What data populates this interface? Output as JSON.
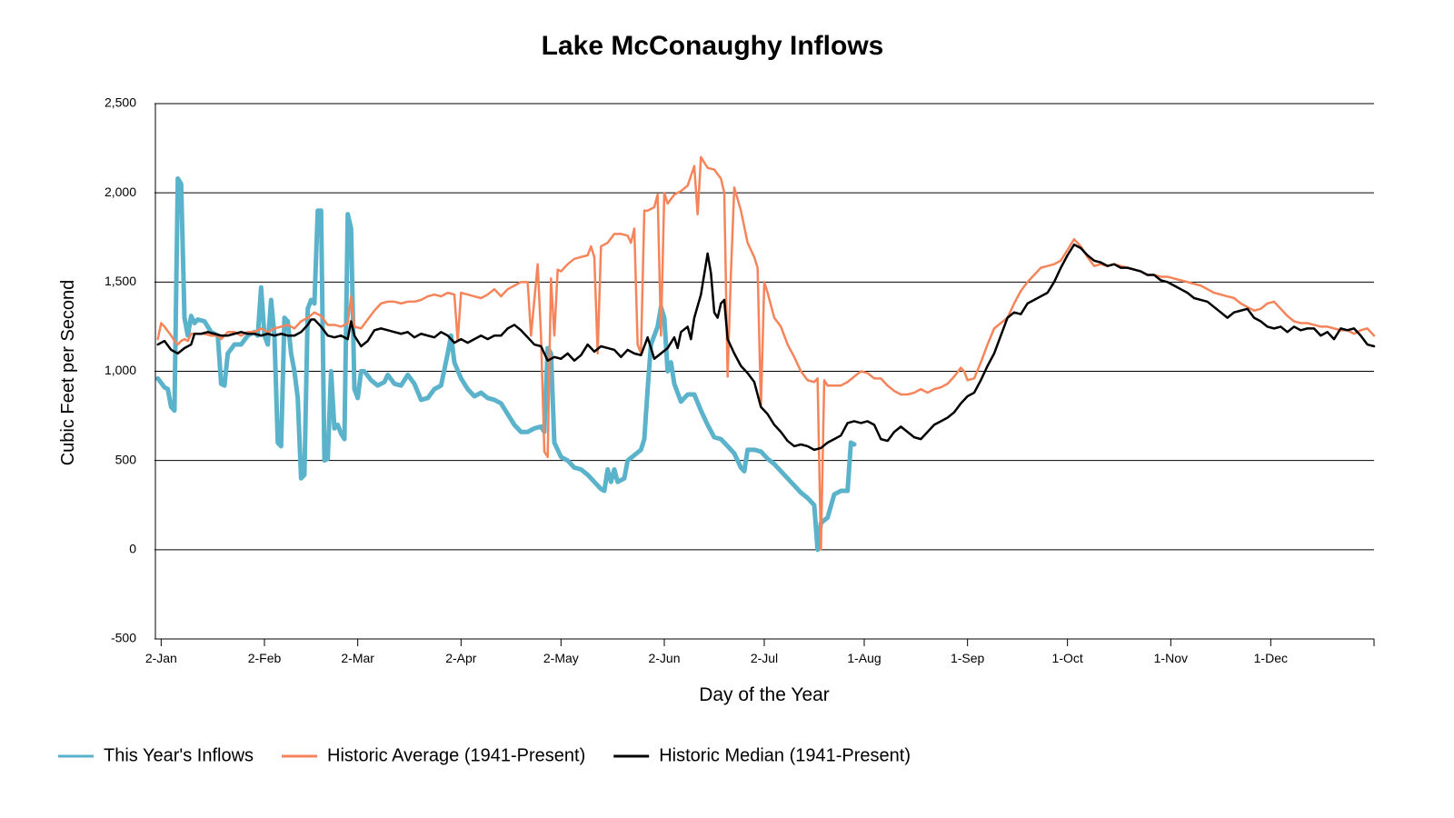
{
  "chart_data": {
    "type": "line",
    "title": "Lake McConaughy Inflows",
    "x_label": "Day of the Year",
    "y_label": "Cubic Feet per Second",
    "xlim": [
      0,
      366
    ],
    "ylim": [
      -500,
      2500
    ],
    "grid": true,
    "legend": "bottom",
    "xticks": [
      {
        "value": 2,
        "label": "2-Jan"
      },
      {
        "value": 33,
        "label": "2-Feb"
      },
      {
        "value": 61,
        "label": "2-Mar"
      },
      {
        "value": 92,
        "label": "2-Apr"
      },
      {
        "value": 122,
        "label": "2-May"
      },
      {
        "value": 153,
        "label": "2-Jun"
      },
      {
        "value": 183,
        "label": "2-Jul"
      },
      {
        "value": 213,
        "label": "1-Aug"
      },
      {
        "value": 244,
        "label": "1-Sep"
      },
      {
        "value": 274,
        "label": "1-Oct"
      },
      {
        "value": 305,
        "label": "1-Nov"
      },
      {
        "value": 335,
        "label": "1-Dec"
      }
    ],
    "yticks": [
      -500,
      0,
      500,
      {
        "value": 1000,
        "label": "1,000"
      },
      {
        "value": 1500,
        "label": "1,500"
      },
      {
        "value": 2000,
        "label": "2,000"
      },
      {
        "value": 2500,
        "label": "2,500"
      }
    ],
    "series": [
      {
        "name": "This Year's Inflows",
        "color": "#5bb3cb",
        "width": 5,
        "x": [
          1,
          3,
          4,
          5,
          6,
          7,
          8,
          9,
          10,
          11,
          12,
          13,
          15,
          17,
          19,
          20,
          21,
          22,
          24,
          26,
          28,
          30,
          31,
          32,
          33,
          34,
          35,
          36,
          37,
          38,
          39,
          40,
          41,
          42,
          43,
          44,
          45,
          46,
          47,
          48,
          49,
          50,
          51,
          52,
          53,
          54,
          55,
          56,
          57,
          58,
          59,
          60,
          61,
          62,
          63,
          65,
          67,
          69,
          70,
          72,
          74,
          76,
          78,
          80,
          82,
          84,
          86,
          88,
          89,
          90,
          92,
          94,
          96,
          98,
          100,
          102,
          104,
          106,
          108,
          110,
          112,
          114,
          116,
          117,
          118,
          119,
          120,
          122,
          124,
          126,
          128,
          130,
          132,
          134,
          135,
          136,
          137,
          138,
          139,
          141,
          142,
          144,
          146,
          147,
          148,
          149,
          151,
          152,
          153,
          154,
          155,
          156,
          158,
          160,
          162,
          164,
          166,
          168,
          170,
          172,
          174,
          176,
          177,
          178,
          180,
          182,
          184,
          186,
          188,
          190,
          192,
          194,
          196,
          198,
          199,
          200,
          202,
          204,
          206,
          208,
          209,
          210
        ],
        "values": [
          960,
          910,
          900,
          800,
          780,
          2080,
          2050,
          1300,
          1200,
          1310,
          1270,
          1290,
          1280,
          1220,
          1200,
          930,
          920,
          1100,
          1150,
          1150,
          1200,
          1220,
          1200,
          1470,
          1200,
          1150,
          1400,
          1200,
          600,
          580,
          1300,
          1280,
          1100,
          1000,
          850,
          400,
          420,
          1350,
          1400,
          1380,
          1900,
          1900,
          500,
          510,
          1000,
          680,
          700,
          650,
          620,
          1880,
          1800,
          900,
          850,
          1000,
          1000,
          950,
          920,
          940,
          980,
          930,
          920,
          980,
          930,
          840,
          850,
          900,
          920,
          1100,
          1200,
          1050,
          960,
          900,
          860,
          880,
          850,
          840,
          820,
          760,
          700,
          660,
          660,
          680,
          690,
          660,
          1130,
          1100,
          600,
          520,
          500,
          460,
          450,
          420,
          380,
          340,
          330,
          450,
          380,
          450,
          380,
          400,
          500,
          530,
          560,
          620,
          900,
          1150,
          1250,
          1360,
          1300,
          1000,
          1050,
          930,
          830,
          870,
          870,
          780,
          700,
          630,
          620,
          580,
          540,
          460,
          440,
          560,
          560,
          550,
          510,
          480,
          440,
          400,
          360,
          320,
          290,
          250,
          0,
          150,
          180,
          310,
          330,
          330,
          600,
          590
        ]
      },
      {
        "name": "Historic Average (1941-Present)",
        "color": "#f5845a",
        "width": 2.5,
        "x": [
          1,
          2,
          3,
          5,
          6,
          7,
          8,
          9,
          10,
          11,
          13,
          15,
          17,
          19,
          20,
          22,
          24,
          26,
          28,
          30,
          32,
          34,
          36,
          38,
          40,
          42,
          44,
          46,
          48,
          50,
          52,
          54,
          56,
          58,
          59,
          60,
          62,
          64,
          66,
          68,
          70,
          72,
          74,
          76,
          78,
          80,
          82,
          84,
          86,
          88,
          90,
          91,
          92,
          94,
          96,
          98,
          100,
          102,
          104,
          106,
          108,
          110,
          112,
          113,
          114,
          115,
          116,
          117,
          118,
          119,
          120,
          121,
          122,
          124,
          126,
          128,
          130,
          131,
          132,
          133,
          134,
          136,
          138,
          140,
          142,
          143,
          144,
          145,
          146,
          147,
          148,
          150,
          151,
          152,
          153,
          154,
          156,
          158,
          160,
          162,
          163,
          164,
          166,
          168,
          170,
          171,
          172,
          173,
          174,
          176,
          178,
          180,
          181,
          182,
          183,
          184,
          186,
          188,
          190,
          192,
          194,
          196,
          198,
          199,
          200,
          201,
          202,
          204,
          206,
          208,
          210,
          212,
          214,
          216,
          218,
          220,
          222,
          224,
          226,
          228,
          230,
          232,
          234,
          236,
          238,
          240,
          242,
          243,
          244,
          246,
          248,
          250,
          252,
          254,
          256,
          258,
          260,
          262,
          264,
          266,
          268,
          270,
          272,
          274,
          276,
          278,
          280,
          282,
          284,
          286,
          288,
          290,
          292,
          294,
          296,
          298,
          300,
          302,
          304,
          306,
          308,
          310,
          312,
          314,
          316,
          318,
          320,
          322,
          324,
          326,
          328,
          330,
          332,
          334,
          336,
          338,
          340,
          342,
          344,
          346,
          348,
          350,
          352,
          354,
          356,
          358,
          360,
          362,
          364,
          366
        ],
        "values": [
          1180,
          1270,
          1250,
          1200,
          1170,
          1150,
          1170,
          1180,
          1170,
          1210,
          1210,
          1210,
          1200,
          1200,
          1180,
          1220,
          1220,
          1200,
          1220,
          1220,
          1240,
          1220,
          1240,
          1250,
          1260,
          1240,
          1280,
          1300,
          1330,
          1310,
          1260,
          1260,
          1250,
          1270,
          1420,
          1250,
          1240,
          1290,
          1340,
          1380,
          1390,
          1390,
          1380,
          1390,
          1390,
          1400,
          1420,
          1430,
          1420,
          1440,
          1430,
          1170,
          1440,
          1430,
          1420,
          1410,
          1430,
          1460,
          1420,
          1460,
          1480,
          1500,
          1500,
          1200,
          1400,
          1600,
          1200,
          550,
          520,
          1520,
          1200,
          1570,
          1560,
          1600,
          1630,
          1640,
          1650,
          1700,
          1640,
          1100,
          1700,
          1720,
          1770,
          1770,
          1760,
          1720,
          1800,
          1150,
          1100,
          1900,
          1900,
          1920,
          1990,
          1200,
          2000,
          1940,
          1990,
          2010,
          2040,
          2150,
          1880,
          2200,
          2140,
          2130,
          2080,
          2000,
          970,
          1550,
          2030,
          1900,
          1720,
          1640,
          1580,
          800,
          1500,
          1440,
          1300,
          1250,
          1150,
          1080,
          1000,
          950,
          940,
          960,
          0,
          950,
          920,
          920,
          920,
          940,
          970,
          1000,
          990,
          960,
          960,
          920,
          890,
          870,
          870,
          880,
          900,
          880,
          900,
          910,
          930,
          970,
          1020,
          1000,
          950,
          960,
          1050,
          1150,
          1240,
          1270,
          1300,
          1380,
          1450,
          1500,
          1540,
          1580,
          1590,
          1600,
          1620,
          1680,
          1740,
          1700,
          1640,
          1590,
          1600,
          1590,
          1600,
          1590,
          1580,
          1570,
          1560,
          1540,
          1540,
          1530,
          1530,
          1520,
          1510,
          1500,
          1490,
          1480,
          1460,
          1440,
          1430,
          1420,
          1410,
          1380,
          1360,
          1340,
          1350,
          1380,
          1390,
          1350,
          1310,
          1280,
          1270,
          1270,
          1260,
          1250,
          1250,
          1240,
          1230,
          1230,
          1210,
          1230,
          1240,
          1200
        ]
      },
      {
        "name": "Historic Median (1941-Present)",
        "color": "#000000",
        "width": 2.5,
        "x": [
          1,
          3,
          5,
          7,
          9,
          11,
          12,
          14,
          16,
          18,
          20,
          22,
          24,
          26,
          28,
          30,
          32,
          34,
          36,
          38,
          40,
          42,
          44,
          46,
          47,
          48,
          50,
          52,
          54,
          56,
          58,
          59,
          60,
          62,
          64,
          66,
          68,
          70,
          72,
          74,
          76,
          78,
          80,
          82,
          84,
          86,
          88,
          90,
          92,
          94,
          96,
          98,
          100,
          102,
          104,
          106,
          108,
          110,
          112,
          114,
          116,
          118,
          120,
          122,
          124,
          126,
          128,
          130,
          132,
          134,
          136,
          138,
          140,
          142,
          144,
          146,
          148,
          150,
          152,
          154,
          156,
          157,
          158,
          160,
          161,
          162,
          164,
          166,
          167,
          168,
          169,
          170,
          171,
          172,
          174,
          176,
          178,
          180,
          182,
          184,
          186,
          188,
          190,
          192,
          194,
          196,
          198,
          200,
          202,
          204,
          206,
          208,
          210,
          212,
          214,
          216,
          218,
          220,
          222,
          224,
          226,
          228,
          230,
          232,
          234,
          236,
          238,
          240,
          242,
          244,
          246,
          248,
          250,
          252,
          254,
          256,
          258,
          260,
          262,
          264,
          266,
          268,
          270,
          272,
          274,
          276,
          278,
          280,
          282,
          284,
          286,
          288,
          290,
          292,
          294,
          296,
          298,
          300,
          302,
          304,
          306,
          308,
          310,
          312,
          314,
          316,
          318,
          320,
          322,
          324,
          326,
          328,
          330,
          332,
          334,
          336,
          338,
          340,
          342,
          344,
          346,
          348,
          350,
          352,
          354,
          356,
          358,
          360,
          362,
          364,
          366
        ],
        "values": [
          1150,
          1170,
          1120,
          1100,
          1130,
          1150,
          1210,
          1210,
          1220,
          1210,
          1200,
          1200,
          1210,
          1220,
          1210,
          1210,
          1200,
          1210,
          1200,
          1210,
          1200,
          1200,
          1220,
          1260,
          1290,
          1290,
          1250,
          1200,
          1190,
          1200,
          1180,
          1280,
          1200,
          1140,
          1170,
          1230,
          1240,
          1230,
          1220,
          1210,
          1220,
          1190,
          1210,
          1200,
          1190,
          1220,
          1200,
          1160,
          1180,
          1160,
          1180,
          1200,
          1180,
          1200,
          1200,
          1240,
          1260,
          1230,
          1190,
          1150,
          1140,
          1060,
          1080,
          1070,
          1100,
          1060,
          1090,
          1150,
          1110,
          1140,
          1130,
          1120,
          1080,
          1120,
          1100,
          1090,
          1190,
          1070,
          1100,
          1130,
          1190,
          1130,
          1220,
          1250,
          1180,
          1300,
          1430,
          1660,
          1550,
          1330,
          1300,
          1380,
          1400,
          1180,
          1100,
          1030,
          990,
          940,
          800,
          760,
          700,
          660,
          610,
          580,
          590,
          580,
          560,
          570,
          600,
          620,
          640,
          710,
          720,
          710,
          720,
          700,
          620,
          610,
          660,
          690,
          660,
          630,
          620,
          660,
          700,
          720,
          740,
          770,
          820,
          860,
          880,
          950,
          1030,
          1100,
          1200,
          1300,
          1330,
          1320,
          1380,
          1400,
          1420,
          1440,
          1500,
          1580,
          1650,
          1710,
          1690,
          1650,
          1620,
          1610,
          1590,
          1600,
          1580,
          1580,
          1570,
          1560,
          1540,
          1540,
          1510,
          1500,
          1480,
          1460,
          1440,
          1410,
          1400,
          1390,
          1360,
          1330,
          1300,
          1330,
          1340,
          1350,
          1300,
          1280,
          1250,
          1240,
          1250,
          1220,
          1250,
          1230,
          1240,
          1240,
          1200,
          1220,
          1180,
          1240,
          1230,
          1240,
          1200,
          1150,
          1140
        ]
      }
    ]
  }
}
